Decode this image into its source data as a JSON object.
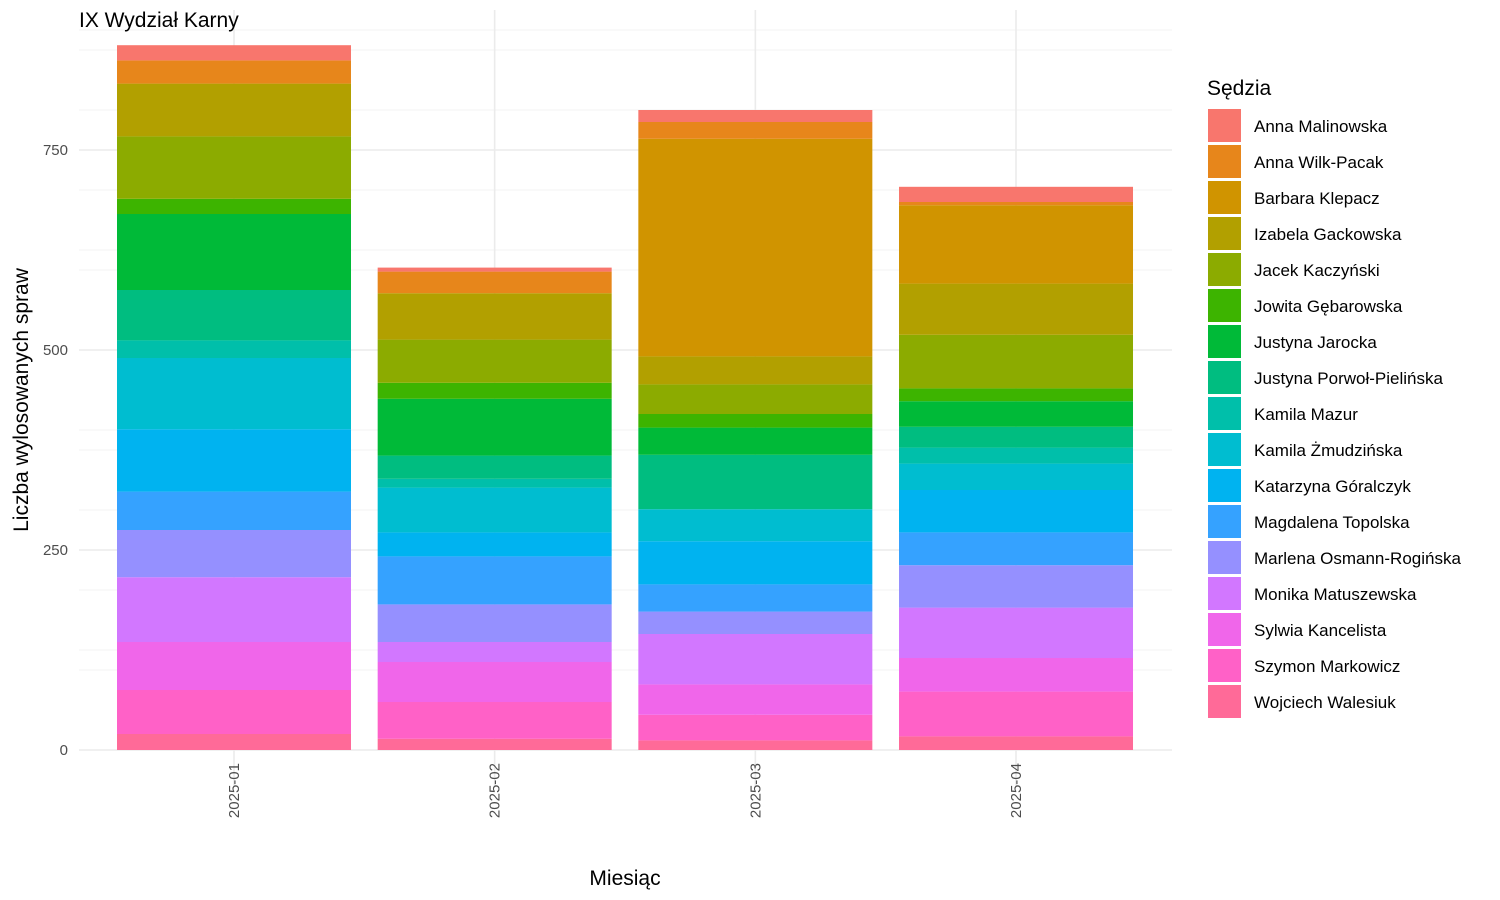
{
  "chart_data": {
    "type": "bar",
    "stacked": true,
    "title": "IX Wydział Karny",
    "xlabel": "Miesiąc",
    "ylabel": "Liczba wylosowanych spraw",
    "categories": [
      "2025-01",
      "2025-02",
      "2025-03",
      "2025-04"
    ],
    "ylim": [
      0,
      920
    ],
    "yticks": [
      0,
      250,
      500,
      750
    ],
    "grid": true,
    "legend": {
      "title": "Sędzia",
      "position": "right"
    },
    "series": [
      {
        "name": "Anna Malinowska",
        "color": "#F8766D",
        "values": [
          19,
          5,
          15,
          19
        ]
      },
      {
        "name": "Anna Wilk-Pacak",
        "color": "#E7861B",
        "values": [
          29,
          27,
          21,
          4
        ]
      },
      {
        "name": "Barbara Klepacz",
        "color": "#D09400",
        "values": [
          0,
          0,
          272,
          98
        ]
      },
      {
        "name": "Izabela Gackowska",
        "color": "#B2A000",
        "values": [
          66,
          58,
          35,
          64
        ]
      },
      {
        "name": "Jacek Kaczyński",
        "color": "#8CAB00",
        "values": [
          78,
          54,
          37,
          67
        ]
      },
      {
        "name": "Jowita Gębarowska",
        "color": "#3DB400",
        "values": [
          19,
          20,
          17,
          16
        ]
      },
      {
        "name": "Justyna Jarocka",
        "color": "#00BA38",
        "values": [
          95,
          71,
          34,
          32
        ]
      },
      {
        "name": "Justyna Porwoł-Pielińska",
        "color": "#00BD80",
        "values": [
          63,
          29,
          68,
          26
        ]
      },
      {
        "name": "Kamila Mazur",
        "color": "#00BFAA",
        "values": [
          22,
          11,
          0,
          20
        ]
      },
      {
        "name": "Kamila Żmudzińska",
        "color": "#00BDD0",
        "values": [
          89,
          56,
          40,
          33
        ]
      },
      {
        "name": "Katarzyna Góralczyk",
        "color": "#00B3F0",
        "values": [
          78,
          30,
          54,
          53
        ]
      },
      {
        "name": "Magdalena Topolska",
        "color": "#35A2FF",
        "values": [
          48,
          60,
          34,
          41
        ]
      },
      {
        "name": "Marlena Osmann-Rogińska",
        "color": "#9590FF",
        "values": [
          59,
          47,
          28,
          53
        ]
      },
      {
        "name": "Monika Matuszewska",
        "color": "#D277FF",
        "values": [
          81,
          25,
          63,
          63
        ]
      },
      {
        "name": "Sylwia Kancelista",
        "color": "#F066EA",
        "values": [
          60,
          50,
          38,
          42
        ]
      },
      {
        "name": "Szymon Markowicz",
        "color": "#FF61C7",
        "values": [
          55,
          46,
          32,
          56
        ]
      },
      {
        "name": "Wojciech Walesiuk",
        "color": "#FF6A98",
        "values": [
          20,
          14,
          12,
          17
        ]
      }
    ]
  }
}
